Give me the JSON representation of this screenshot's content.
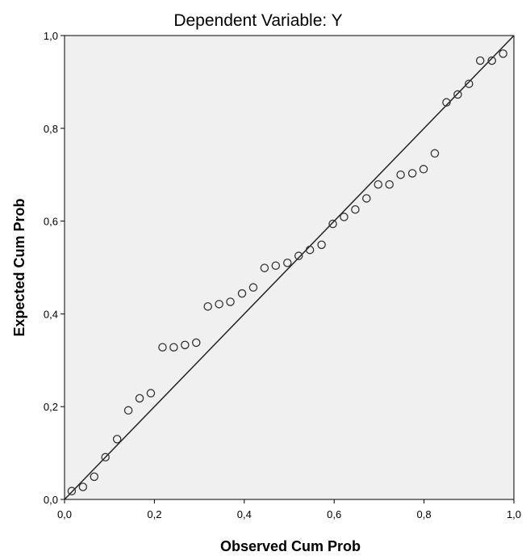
{
  "chart_data": {
    "type": "scatter",
    "title": "Dependent Variable: Y",
    "xlabel": "Observed Cum Prob",
    "ylabel": "Expected Cum Prob",
    "xlim": [
      0,
      1
    ],
    "ylim": [
      0,
      1
    ],
    "x_ticks": [
      0,
      0.2,
      0.4,
      0.6,
      0.8,
      1.0
    ],
    "y_ticks": [
      0,
      0.2,
      0.4,
      0.6,
      0.8,
      1.0
    ],
    "x_tick_labels": [
      "0,0",
      "0,2",
      "0,4",
      "0,6",
      "0,8",
      "1,0"
    ],
    "y_tick_labels": [
      "0,0",
      "0,2",
      "0,4",
      "0,6",
      "0,8",
      "1,0"
    ],
    "grid": false,
    "reference_line": {
      "from": [
        0,
        0
      ],
      "to": [
        1,
        1
      ]
    },
    "plot_background": "#f0f0f0",
    "marker_color": "#333333",
    "line_color": "#222222",
    "points": [
      {
        "x": 0.016,
        "y": 0.018
      },
      {
        "x": 0.041,
        "y": 0.027
      },
      {
        "x": 0.066,
        "y": 0.049
      },
      {
        "x": 0.091,
        "y": 0.091
      },
      {
        "x": 0.117,
        "y": 0.13
      },
      {
        "x": 0.142,
        "y": 0.192
      },
      {
        "x": 0.167,
        "y": 0.218
      },
      {
        "x": 0.192,
        "y": 0.229
      },
      {
        "x": 0.218,
        "y": 0.328
      },
      {
        "x": 0.243,
        "y": 0.328
      },
      {
        "x": 0.268,
        "y": 0.333
      },
      {
        "x": 0.293,
        "y": 0.338
      },
      {
        "x": 0.319,
        "y": 0.416
      },
      {
        "x": 0.344,
        "y": 0.421
      },
      {
        "x": 0.369,
        "y": 0.426
      },
      {
        "x": 0.395,
        "y": 0.444
      },
      {
        "x": 0.42,
        "y": 0.457
      },
      {
        "x": 0.445,
        "y": 0.499
      },
      {
        "x": 0.47,
        "y": 0.504
      },
      {
        "x": 0.496,
        "y": 0.51
      },
      {
        "x": 0.521,
        "y": 0.525
      },
      {
        "x": 0.546,
        "y": 0.538
      },
      {
        "x": 0.572,
        "y": 0.549
      },
      {
        "x": 0.597,
        "y": 0.594
      },
      {
        "x": 0.622,
        "y": 0.609
      },
      {
        "x": 0.647,
        "y": 0.625
      },
      {
        "x": 0.672,
        "y": 0.649
      },
      {
        "x": 0.698,
        "y": 0.679
      },
      {
        "x": 0.723,
        "y": 0.679
      },
      {
        "x": 0.748,
        "y": 0.7
      },
      {
        "x": 0.774,
        "y": 0.703
      },
      {
        "x": 0.799,
        "y": 0.712
      },
      {
        "x": 0.824,
        "y": 0.746
      },
      {
        "x": 0.85,
        "y": 0.856
      },
      {
        "x": 0.875,
        "y": 0.873
      },
      {
        "x": 0.9,
        "y": 0.896
      },
      {
        "x": 0.925,
        "y": 0.946
      },
      {
        "x": 0.951,
        "y": 0.946
      },
      {
        "x": 0.976,
        "y": 0.961
      }
    ]
  }
}
